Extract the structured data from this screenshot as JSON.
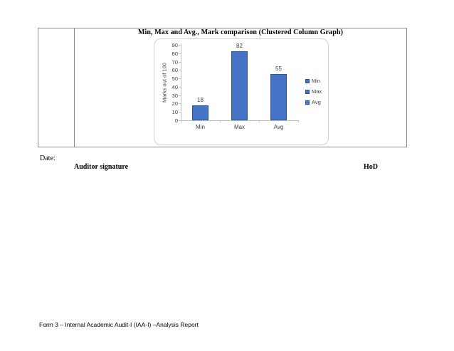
{
  "page": {
    "date_label": "Date:",
    "auditor_label": "Auditor signature",
    "hod_label": "HoD",
    "footer": "Form 3 – Internal Academic Audit-I (IAA-I) –Analysis Report"
  },
  "chart_data": {
    "type": "bar",
    "title": "Min, Max and Avg., Mark comparison (Clustered Column Graph)",
    "categories": [
      "Min",
      "Max",
      "Avg"
    ],
    "values": [
      18,
      82,
      55
    ],
    "data_labels": [
      "18",
      "82",
      "55"
    ],
    "series": [
      {
        "name": "Min",
        "values": [
          18
        ]
      },
      {
        "name": "Max",
        "values": [
          82
        ]
      },
      {
        "name": "Avg",
        "values": [
          55
        ]
      }
    ],
    "xlabel": "",
    "ylabel": "Marks out of 100",
    "ylim": [
      0,
      90
    ],
    "yticks": [
      0,
      10,
      20,
      30,
      40,
      50,
      60,
      70,
      80,
      90
    ],
    "legend": [
      "Min",
      "Max",
      "Avg"
    ],
    "legend_position": "right",
    "grid": false,
    "colors": {
      "bar_fill": "#4472C4",
      "bar_border": "#2F5597",
      "axis_line": "#BFBFBF",
      "tick_text": "#404040",
      "title_text": "#000000"
    }
  }
}
